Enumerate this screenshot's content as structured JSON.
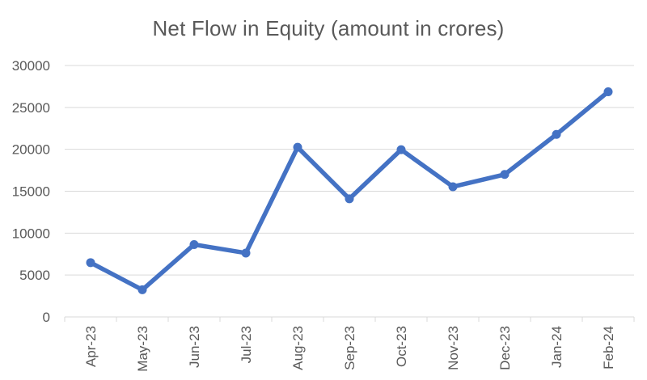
{
  "colors": {
    "line": "#4472C4",
    "marker": "#4472C4",
    "gridline": "#D9D9D9",
    "axis": "#D9D9D9",
    "text": "#595959",
    "background": "#FFFFFF"
  },
  "chart_data": {
    "type": "line",
    "title": "Net Flow in Equity (amount in crores)",
    "categories": [
      "Apr-23",
      "May-23",
      "Jun-23",
      "Jul-23",
      "Aug-23",
      "Sep-23",
      "Oct-23",
      "Nov-23",
      "Dec-23",
      "Jan-24",
      "Feb-24"
    ],
    "series": [
      {
        "name": "Net Flow in Equity",
        "values": [
          6480,
          3240,
          8637,
          7626,
          20245,
          14091,
          19957,
          15536,
          16997,
          21781,
          26866
        ]
      }
    ],
    "xlabel": "",
    "ylabel": "",
    "ylim": [
      0,
      30000
    ],
    "yticks": [
      0,
      5000,
      10000,
      15000,
      20000,
      25000,
      30000
    ],
    "grid": "horizontal",
    "legend": "none",
    "marker": "circle",
    "x_tick_label_rotation": -90
  }
}
